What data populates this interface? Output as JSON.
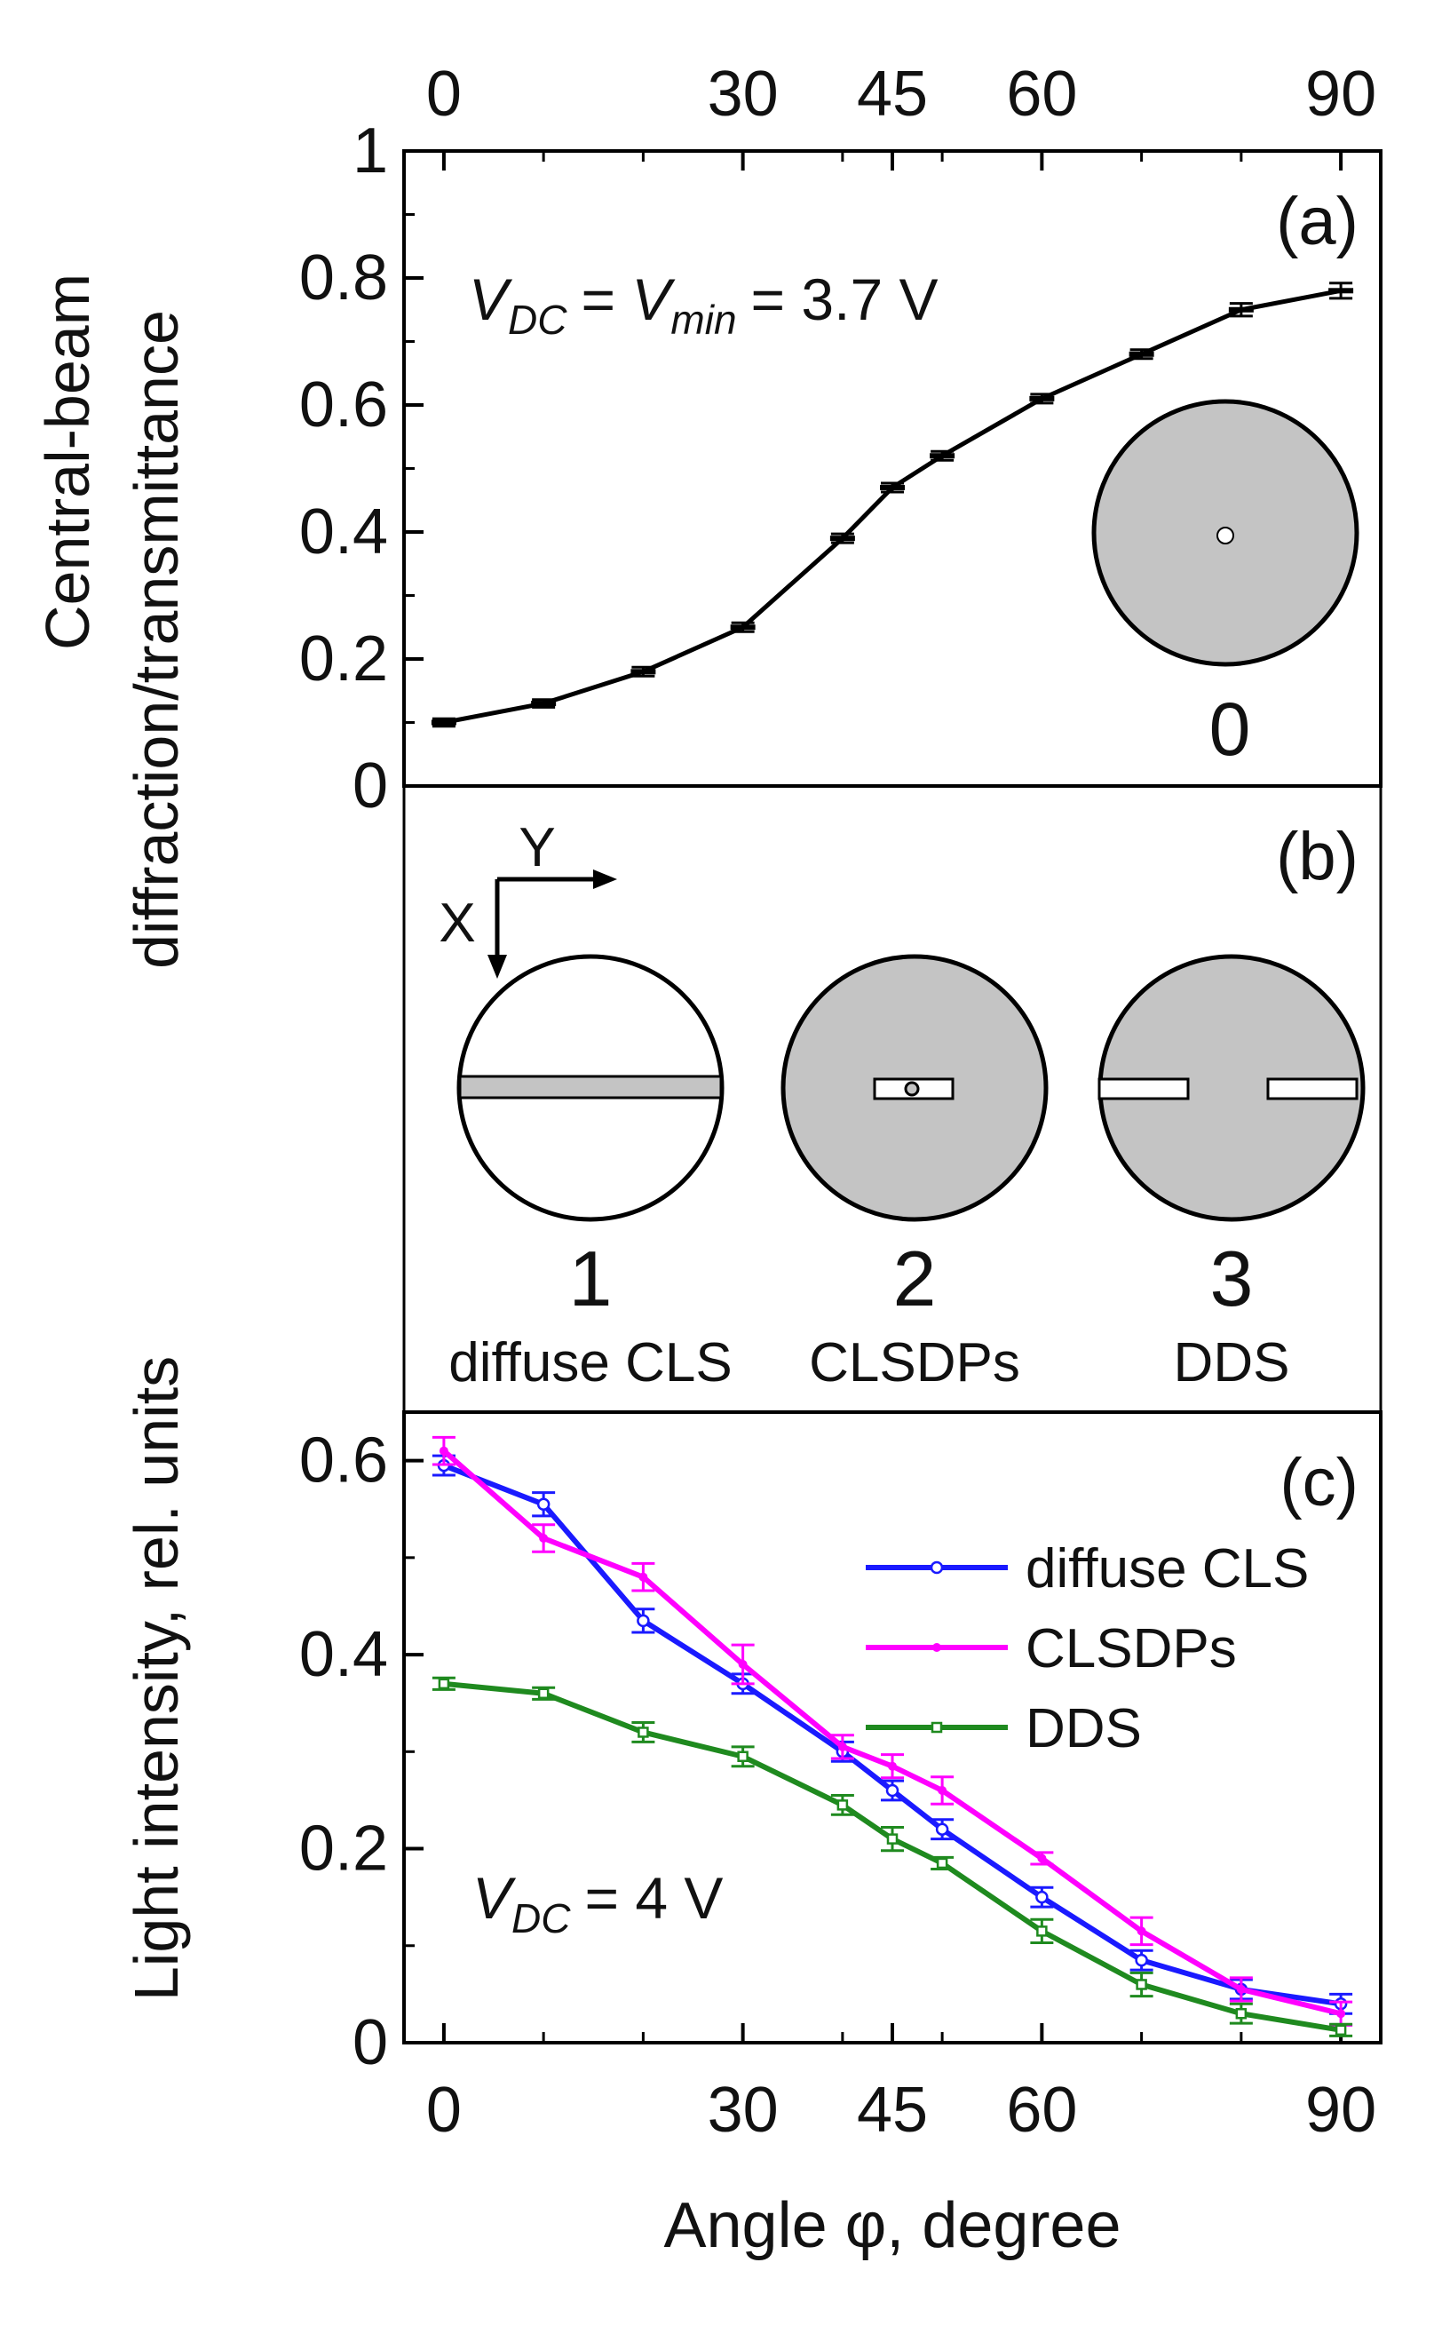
{
  "chart_data": [
    {
      "panel": "(a)",
      "type": "line",
      "ylabel": [
        "Central-beam",
        "diffraction/transmittance"
      ],
      "ylim": [
        0,
        1
      ],
      "yticks": [
        0,
        0.2,
        0.4,
        0.6,
        0.8,
        1
      ],
      "ytick_labels": [
        "0",
        "0.2",
        "0.4",
        "0.6",
        "0.8",
        "1"
      ],
      "xlim": [
        -4,
        94
      ],
      "xticks": [
        0,
        30,
        45,
        60,
        90
      ],
      "xtick_labels": [
        "0",
        "30",
        "45",
        "60",
        "90"
      ],
      "annotation": {
        "v": "V",
        "dc": "DC",
        "eq1": "= ",
        "min": "min",
        "rest": "= 3.7 V"
      },
      "inset_label": "0",
      "series": [
        {
          "color": "#000000",
          "x": [
            0,
            10,
            20,
            30,
            40,
            45,
            50,
            60,
            70,
            80,
            90
          ],
          "y": [
            0.1,
            0.13,
            0.18,
            0.25,
            0.39,
            0.47,
            0.52,
            0.61,
            0.68,
            0.75,
            0.78
          ],
          "err": [
            0.006,
            0.006,
            0.007,
            0.007,
            0.007,
            0.007,
            0.007,
            0.007,
            0.007,
            0.01,
            0.012
          ]
        }
      ]
    },
    {
      "panel": "(c)",
      "type": "line",
      "xlabel": "Angle φ, degree",
      "ylabel": "Light intensity, rel. units",
      "ylim": [
        0,
        0.65
      ],
      "yticks": [
        0,
        0.2,
        0.4,
        0.6
      ],
      "ytick_labels": [
        "0",
        "0.2",
        "0.4",
        "0.6"
      ],
      "xlim": [
        -4,
        94
      ],
      "xticks": [
        0,
        30,
        45,
        60,
        90
      ],
      "xtick_labels": [
        "0",
        "30",
        "45",
        "60",
        "90"
      ],
      "annotation": {
        "v": "V",
        "dc": "DC",
        "rest": "= 4 V"
      },
      "legend_position": "upper-right",
      "series": [
        {
          "name": "diffuse CLS",
          "color": "#1a1aff",
          "marker": "circle",
          "x": [
            0,
            10,
            20,
            30,
            40,
            45,
            50,
            60,
            70,
            80,
            90
          ],
          "y": [
            0.595,
            0.555,
            0.435,
            0.37,
            0.3,
            0.26,
            0.22,
            0.15,
            0.085,
            0.055,
            0.04
          ],
          "err": [
            0.01,
            0.012,
            0.012,
            0.01,
            0.01,
            0.01,
            0.01,
            0.01,
            0.01,
            0.01,
            0.01
          ]
        },
        {
          "name": "CLSDPs",
          "color": "#ff00ff",
          "marker": "dot",
          "x": [
            0,
            10,
            20,
            30,
            40,
            45,
            50,
            60,
            70,
            80,
            90
          ],
          "y": [
            0.61,
            0.52,
            0.48,
            0.39,
            0.305,
            0.285,
            0.26,
            0.19,
            0.115,
            0.055,
            0.03
          ],
          "err": [
            0.014,
            0.014,
            0.014,
            0.02,
            0.012,
            0.012,
            0.014,
            0.006,
            0.014,
            0.012,
            0.012
          ]
        },
        {
          "name": "DDS",
          "color": "#1f8a1f",
          "marker": "square",
          "x": [
            0,
            10,
            20,
            30,
            40,
            45,
            50,
            60,
            70,
            80,
            90
          ],
          "y": [
            0.37,
            0.36,
            0.32,
            0.295,
            0.245,
            0.21,
            0.185,
            0.115,
            0.06,
            0.03,
            0.013
          ],
          "err": [
            0.006,
            0.006,
            0.01,
            0.01,
            0.01,
            0.012,
            0.006,
            0.012,
            0.012,
            0.01,
            0.006
          ]
        }
      ]
    }
  ],
  "panel_b": {
    "label": "(b)",
    "axis_y": "Y",
    "axis_x": "X",
    "items": [
      {
        "number": "1",
        "caption": "diffuse CLS"
      },
      {
        "number": "2",
        "caption": "CLSDPs"
      },
      {
        "number": "3",
        "caption": "DDS"
      }
    ]
  },
  "colors": {
    "axis": "#000000",
    "disc_fill": "#c4c4c4",
    "disc_light": "#ffffff"
  }
}
